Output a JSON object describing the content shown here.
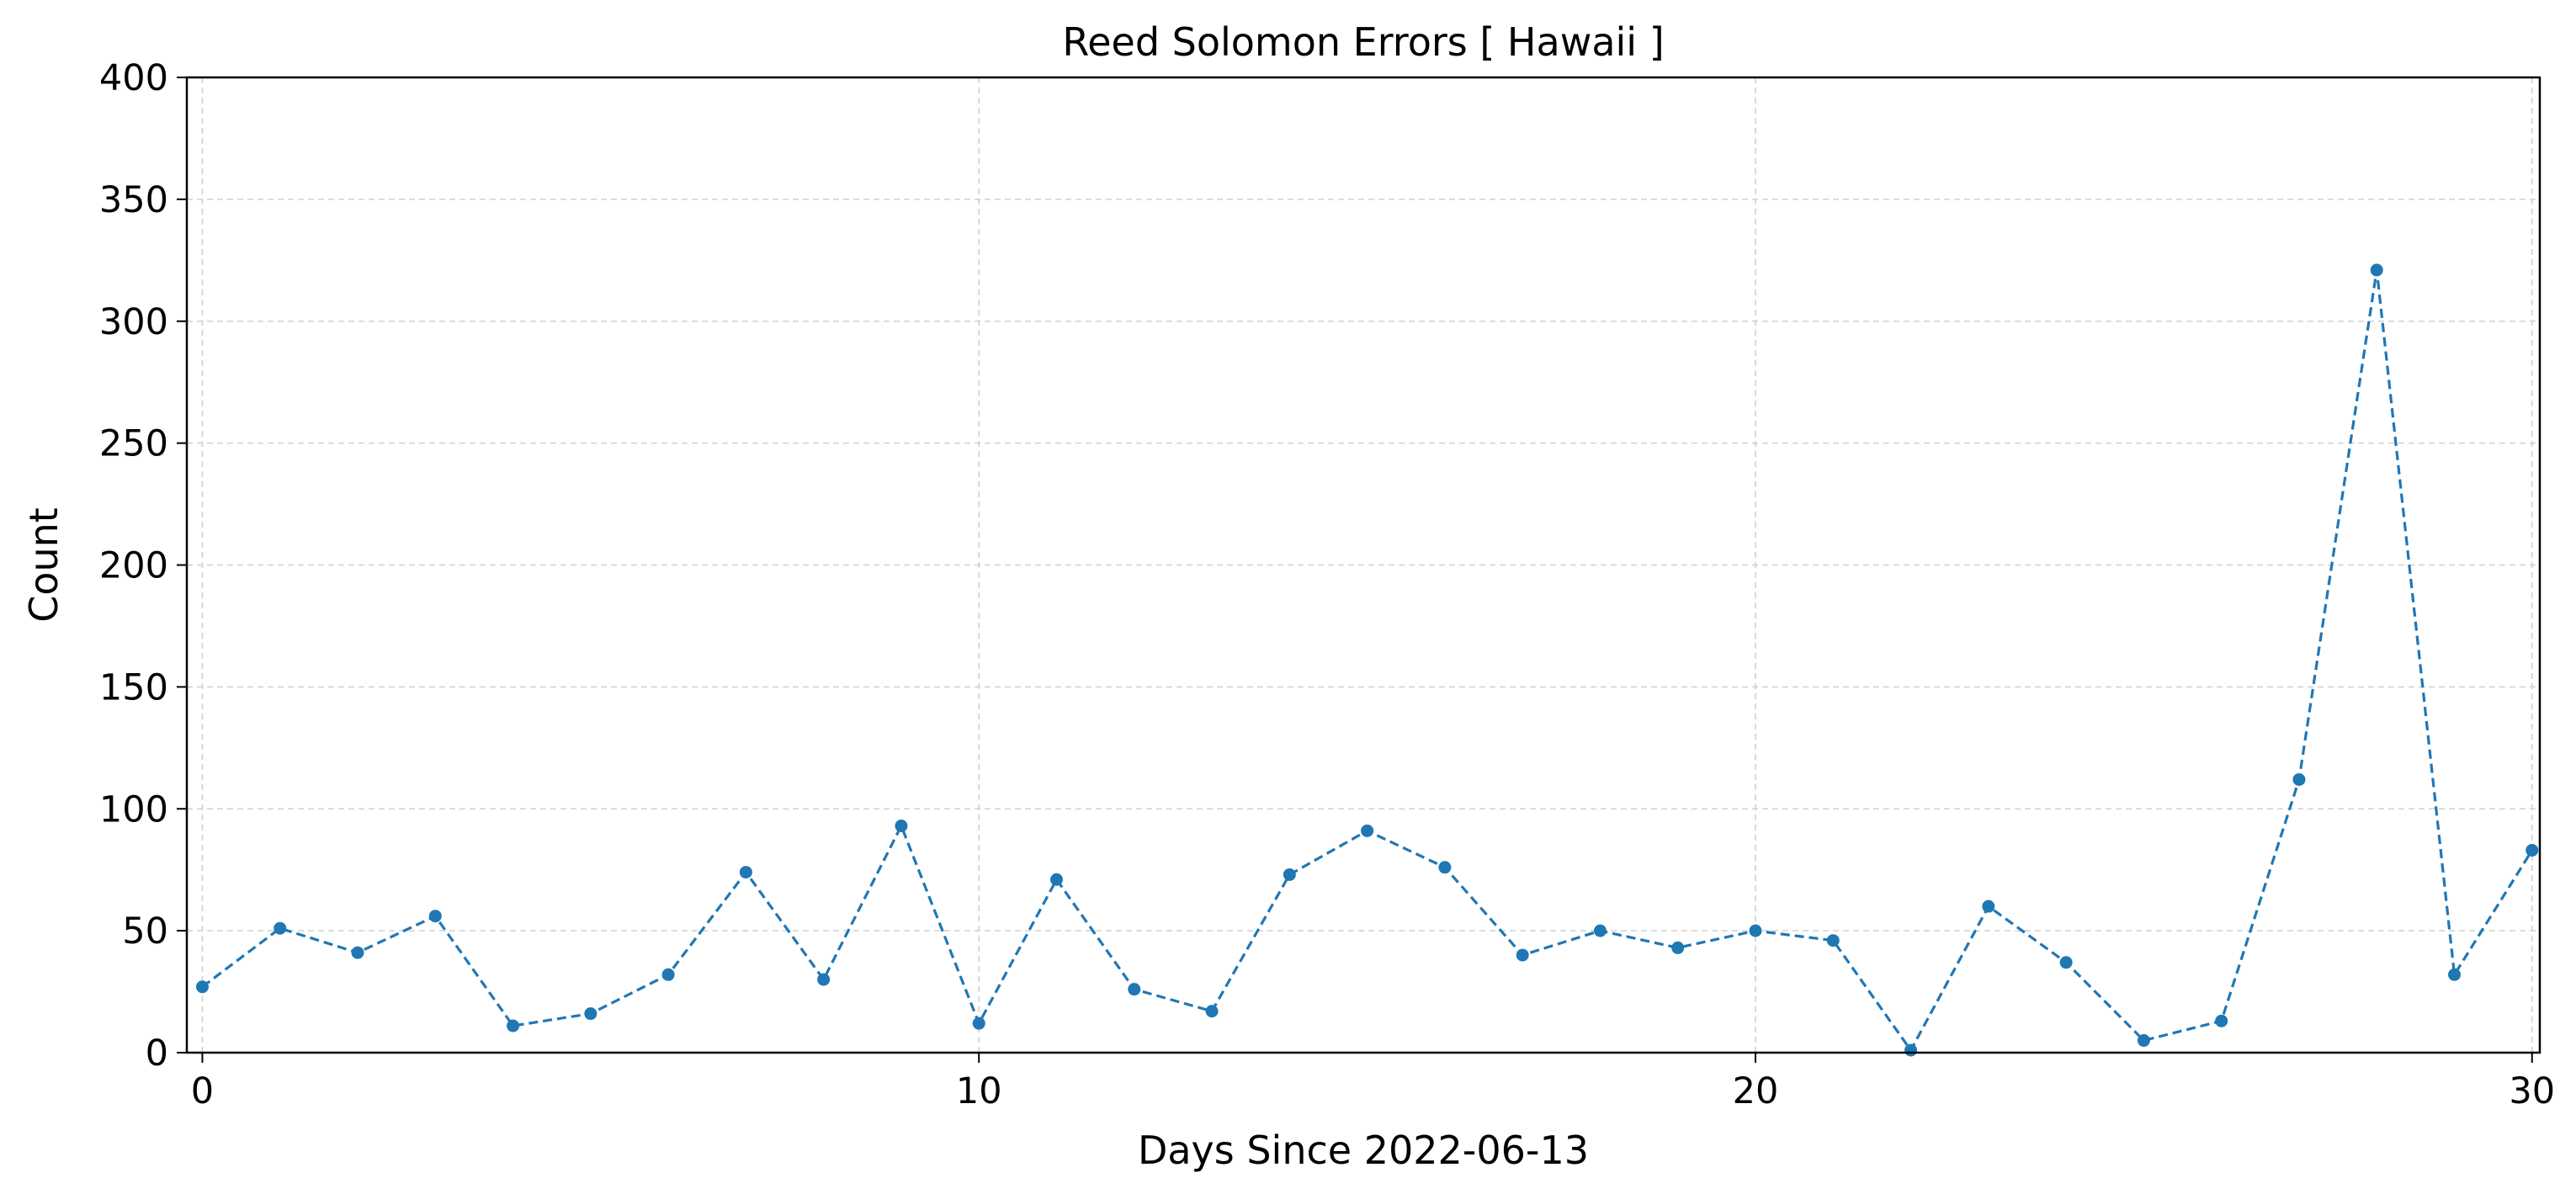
{
  "chart_data": {
    "type": "line",
    "title": "Reed Solomon Errors [ Hawaii ]",
    "xlabel": "Days Since 2022-06-13",
    "ylabel": "Count",
    "xlim": [
      -0.2,
      30.1
    ],
    "ylim": [
      0,
      400
    ],
    "xticks": [
      0,
      10,
      20,
      30
    ],
    "yticks": [
      0,
      50,
      100,
      150,
      200,
      250,
      300,
      350,
      400
    ],
    "grid": true,
    "series": [
      {
        "color": "#1f77b4",
        "line_style": "dashed",
        "marker": "circle",
        "x": [
          0,
          1,
          2,
          3,
          4,
          5,
          6,
          7,
          8,
          9,
          10,
          11,
          12,
          13,
          14,
          15,
          16,
          17,
          18,
          19,
          20,
          21,
          22,
          23,
          24,
          25,
          26,
          27,
          28,
          29,
          30
        ],
        "y": [
          27,
          51,
          41,
          56,
          11,
          16,
          32,
          74,
          30,
          93,
          12,
          71,
          26,
          17,
          73,
          91,
          76,
          40,
          50,
          43,
          50,
          46,
          1,
          60,
          37,
          5,
          13,
          112,
          321,
          32,
          83
        ]
      }
    ]
  }
}
